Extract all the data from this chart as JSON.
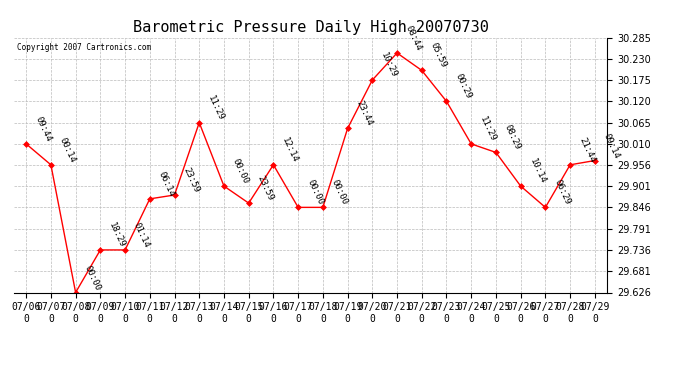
{
  "title": "Barometric Pressure Daily High 20070730",
  "copyright": "Copyright 2007 Cartronics.com",
  "dates": [
    "07/06",
    "07/07",
    "07/08",
    "07/09",
    "07/10",
    "07/11",
    "07/12",
    "07/13",
    "07/14",
    "07/15",
    "07/16",
    "07/17",
    "07/18",
    "07/19",
    "07/20",
    "07/21",
    "07/22",
    "07/23",
    "07/24",
    "07/25",
    "07/26",
    "07/27",
    "07/28",
    "07/29"
  ],
  "values": [
    30.01,
    29.956,
    29.626,
    29.736,
    29.736,
    29.868,
    29.878,
    30.065,
    29.901,
    29.857,
    29.956,
    29.846,
    29.846,
    30.05,
    30.175,
    30.245,
    30.2,
    30.12,
    30.01,
    29.988,
    29.901,
    29.846,
    29.956,
    29.967
  ],
  "times": [
    "09:44",
    "00:14",
    "00:00",
    "18:29",
    "01:14",
    "06:14",
    "23:59",
    "11:29",
    "00:00",
    "23:59",
    "12:14",
    "00:00",
    "00:00",
    "23:44",
    "10:29",
    "08:44",
    "05:59",
    "00:29",
    "11:29",
    "08:29",
    "10:14",
    "06:29",
    "21:44",
    "09:14"
  ],
  "ylim": [
    29.626,
    30.285
  ],
  "yticks": [
    29.626,
    29.681,
    29.736,
    29.791,
    29.846,
    29.901,
    29.956,
    30.01,
    30.065,
    30.12,
    30.175,
    30.23,
    30.285
  ],
  "line_color": "red",
  "marker_color": "red",
  "grid_color": "#bbbbbb",
  "bg_color": "white",
  "title_fontsize": 11,
  "tick_fontsize": 7,
  "annotation_fontsize": 6.5
}
